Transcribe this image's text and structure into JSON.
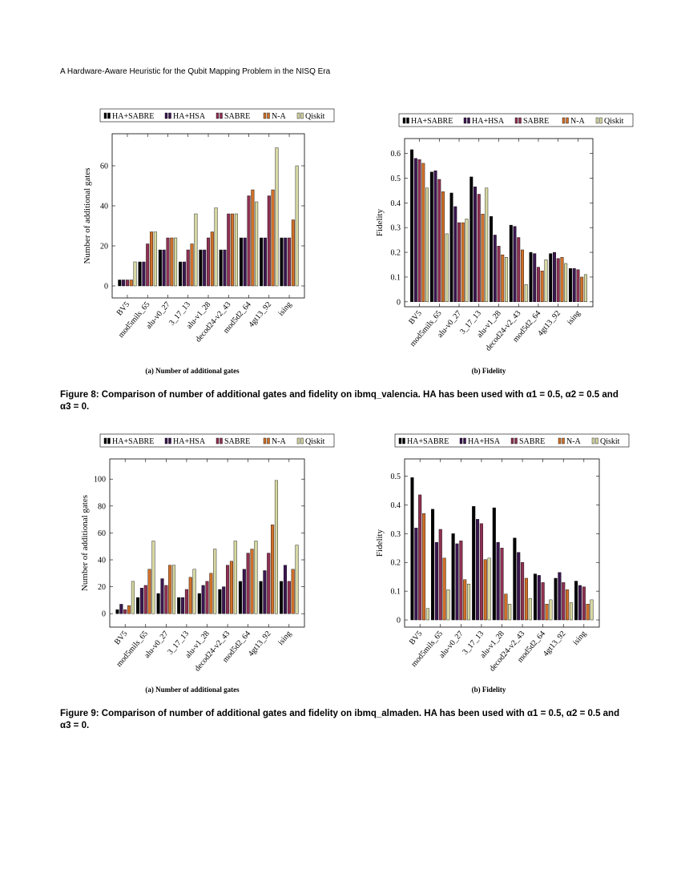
{
  "header": {
    "running_title": "A Hardware-Aware Heuristic for the Qubit Mapping Problem in the NISQ Era"
  },
  "legend": [
    "HA+SABRE",
    "HA+HSA",
    "SABRE",
    "N-A",
    "Qiskit"
  ],
  "colors": {
    "ha_sabre": "#000000",
    "ha_hsa": "#3b1650",
    "sabre": "#8f3153",
    "na": "#d07029",
    "qiskit": "#d6d8a2"
  },
  "figures": [
    {
      "caption_label": "Figure 8:",
      "caption_text": "Comparison of number of additional gates and fidelity on ibmq_valencia. HA has been used with α1 = 0.5, α2 = 0.5 and α3 = 0.",
      "subcaptions": [
        "(a) Number of additional gates",
        "(b) Fidelity"
      ]
    },
    {
      "caption_label": "Figure 9:",
      "caption_text": "Comparison of number of additional gates and fidelity on ibmq_almaden. HA has been used with α1 = 0.5, α2 = 0.5 and α3 = 0.",
      "subcaptions": [
        "(a) Number of additional gates",
        "(b) Fidelity"
      ]
    }
  ],
  "chart_data": [
    {
      "type": "bar",
      "categories": [
        "BV5",
        "mod5mils_65",
        "alu-v0_27",
        "3_17_13",
        "alu-v1_28",
        "decod24-v2_43",
        "mod5d2_64",
        "4gt13_92",
        "ising"
      ],
      "ylabel": "Number of additional gates",
      "ylim": [
        -6,
        76
      ],
      "yticks": [
        0,
        20,
        40,
        60
      ],
      "series": [
        {
          "name": "HA+SABRE",
          "values": [
            3,
            12,
            18,
            12,
            18,
            18,
            24,
            24,
            24
          ]
        },
        {
          "name": "HA+HSA",
          "values": [
            3,
            12,
            18,
            12,
            18,
            18,
            24,
            24,
            24
          ]
        },
        {
          "name": "SABRE",
          "values": [
            3,
            21,
            24,
            18,
            24,
            36,
            45,
            45,
            24
          ]
        },
        {
          "name": "N-A",
          "values": [
            3,
            27,
            24,
            21,
            27,
            36,
            48,
            48,
            33
          ]
        },
        {
          "name": "Qiskit",
          "values": [
            12,
            27,
            24,
            36,
            39,
            36,
            42,
            69,
            60
          ]
        }
      ]
    },
    {
      "type": "bar",
      "categories": [
        "BV5",
        "mod5mils_65",
        "alu-v0_27",
        "3_17_13",
        "alu-v1_28",
        "decod24-v2_43",
        "mod5d2_64",
        "4gt13_92",
        "ising"
      ],
      "ylabel": "Fidelity",
      "ylim": [
        -0.02,
        0.66
      ],
      "yticks": [
        0,
        0.1,
        0.2,
        0.3,
        0.4,
        0.5,
        0.6
      ],
      "series": [
        {
          "name": "HA+SABRE",
          "values": [
            0.615,
            0.525,
            0.44,
            0.505,
            0.345,
            0.31,
            0.2,
            0.195,
            0.135
          ]
        },
        {
          "name": "HA+HSA",
          "values": [
            0.58,
            0.53,
            0.385,
            0.465,
            0.27,
            0.305,
            0.195,
            0.2,
            0.135
          ]
        },
        {
          "name": "SABRE",
          "values": [
            0.575,
            0.495,
            0.32,
            0.435,
            0.225,
            0.26,
            0.14,
            0.175,
            0.13
          ]
        },
        {
          "name": "N-A",
          "values": [
            0.56,
            0.445,
            0.32,
            0.355,
            0.19,
            0.21,
            0.125,
            0.18,
            0.1
          ]
        },
        {
          "name": "Qiskit",
          "values": [
            0.46,
            0.275,
            0.335,
            0.46,
            0.18,
            0.07,
            0.17,
            0.155,
            0.11
          ]
        }
      ]
    },
    {
      "type": "bar",
      "categories": [
        "BV5",
        "mod5mils_65",
        "alu-v0_27",
        "3_17_13",
        "alu-v1_28",
        "decod24-v2_43",
        "mod5d2_64",
        "4gt13_92",
        "ising"
      ],
      "ylabel": "Number of additional gates",
      "ylim": [
        -10,
        115
      ],
      "yticks": [
        0,
        20,
        40,
        60,
        80,
        100
      ],
      "series": [
        {
          "name": "HA+SABRE",
          "values": [
            3,
            12,
            15,
            12,
            15,
            18,
            24,
            24,
            24
          ]
        },
        {
          "name": "HA+HSA",
          "values": [
            7,
            19,
            26,
            12,
            21,
            20,
            33,
            32,
            36
          ]
        },
        {
          "name": "SABRE",
          "values": [
            3,
            21,
            21,
            18,
            24,
            36,
            45,
            45,
            24
          ]
        },
        {
          "name": "N-A",
          "values": [
            6,
            33,
            36,
            27,
            30,
            39,
            48,
            66,
            33
          ]
        },
        {
          "name": "Qiskit",
          "values": [
            24,
            54,
            36,
            33,
            48,
            54,
            54,
            99,
            51
          ]
        }
      ]
    },
    {
      "type": "bar",
      "categories": [
        "BV5",
        "mod5mils_65",
        "alu-v0_27",
        "3_17_13",
        "alu-v1_28",
        "decod24-v2_43",
        "mod5d2_64",
        "4gt13_92",
        "ising"
      ],
      "ylabel": "Fidelity",
      "ylim": [
        -0.025,
        0.56
      ],
      "yticks": [
        0,
        0.1,
        0.2,
        0.3,
        0.4,
        0.5
      ],
      "series": [
        {
          "name": "HA+SABRE",
          "values": [
            0.495,
            0.385,
            0.3,
            0.395,
            0.39,
            0.285,
            0.16,
            0.145,
            0.135
          ]
        },
        {
          "name": "HA+HSA",
          "values": [
            0.32,
            0.27,
            0.265,
            0.35,
            0.27,
            0.235,
            0.155,
            0.165,
            0.12
          ]
        },
        {
          "name": "SABRE",
          "values": [
            0.435,
            0.315,
            0.275,
            0.335,
            0.25,
            0.2,
            0.13,
            0.13,
            0.115
          ]
        },
        {
          "name": "N-A",
          "values": [
            0.37,
            0.215,
            0.14,
            0.21,
            0.09,
            0.145,
            0.055,
            0.105,
            0.055
          ]
        },
        {
          "name": "Qiskit",
          "values": [
            0.04,
            0.105,
            0.125,
            0.215,
            0.055,
            0.075,
            0.07,
            0.06,
            0.07
          ]
        }
      ]
    }
  ]
}
